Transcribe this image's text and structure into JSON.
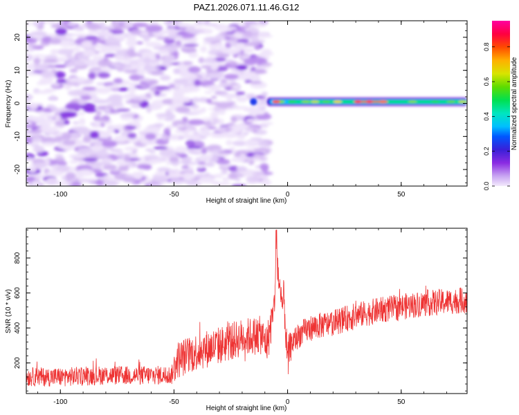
{
  "title": "PAZ1.2026.071.11.46.G12",
  "chart_data": [
    {
      "type": "heatmap",
      "title": "PAZ1.2026.071.11.46.G12",
      "xlabel": "Height of straight line (km)",
      "ylabel": "Frequency (Hz)",
      "xlim": [
        -115,
        79
      ],
      "ylim": [
        -25,
        25
      ],
      "x_ticks": [
        -100,
        -50,
        0,
        50
      ],
      "y_ticks": [
        -20,
        -10,
        0,
        10,
        20
      ],
      "colorbar": {
        "label": "Normalized spectral amplitude",
        "range": [
          0,
          0.95
        ],
        "ticks": [
          0.0,
          0.2,
          0.4,
          0.6,
          0.8
        ],
        "tick_labels": [
          "0.0",
          "0.2",
          "0.4",
          "0.6",
          "0.8"
        ],
        "colormap": "rainbow"
      },
      "regions": [
        {
          "name": "noise",
          "x_range": [
            -115,
            -9
          ],
          "freq_range": [
            -25,
            25
          ],
          "amplitude": 0.05
        },
        {
          "name": "signal",
          "x_range": [
            -9,
            79
          ],
          "freq_center": 0.5,
          "peak_amplitude": 0.95
        }
      ]
    },
    {
      "type": "line",
      "xlabel": "Height of straight line (km)",
      "ylabel": "SNR (10 * v/v)",
      "xlim": [
        -115,
        79
      ],
      "ylim": [
        25,
        970
      ],
      "x_ticks": [
        -100,
        -50,
        0,
        50
      ],
      "y_ticks": [
        200,
        400,
        600,
        800
      ],
      "series": [
        {
          "name": "SNR",
          "color": "#ee3333",
          "x": [
            -115,
            -100,
            -90,
            -80,
            -70,
            -60,
            -51,
            -49,
            -40,
            -30,
            -20,
            -12,
            -9,
            -6,
            -5,
            -4,
            -3,
            -1.5,
            0,
            1,
            3,
            5,
            10,
            20,
            30,
            40,
            50,
            60,
            70,
            79
          ],
          "y": [
            120,
            120,
            125,
            130,
            128,
            130,
            130,
            215,
            265,
            300,
            345,
            360,
            310,
            500,
            830,
            700,
            520,
            560,
            180,
            300,
            330,
            360,
            400,
            430,
            470,
            500,
            520,
            540,
            550,
            560
          ]
        }
      ]
    }
  ]
}
